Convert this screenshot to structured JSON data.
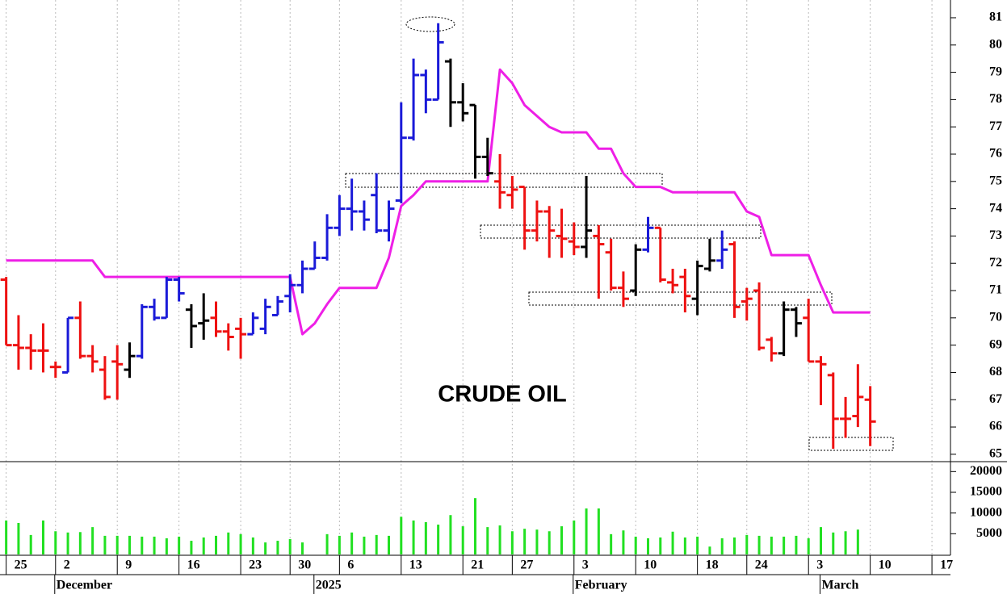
{
  "chart_data": {
    "type": "ohlc",
    "title": "CRUDE OIL",
    "categories": [
      "25",
      null,
      null,
      null,
      "2",
      null,
      null,
      null,
      null,
      "9",
      null,
      null,
      null,
      null,
      "16",
      null,
      null,
      null,
      null,
      "23",
      null,
      null,
      null,
      "30",
      null,
      null,
      null,
      "6",
      null,
      null,
      null,
      null,
      "13",
      null,
      null,
      null,
      null,
      "21",
      null,
      null,
      null,
      "27",
      null,
      null,
      null,
      null,
      "3",
      null,
      null,
      null,
      null,
      "10",
      null,
      null,
      null,
      null,
      "18",
      null,
      null,
      null,
      "24",
      null,
      null,
      null,
      null,
      "3",
      null,
      null,
      null,
      null,
      "10",
      null,
      null,
      null,
      null,
      "17",
      null
    ],
    "months": [
      null,
      null,
      null,
      null,
      "December",
      null,
      null,
      null,
      null,
      null,
      null,
      null,
      null,
      null,
      null,
      null,
      null,
      null,
      null,
      null,
      null,
      null,
      null,
      null,
      null,
      "2025",
      null,
      null,
      null,
      null,
      null,
      null,
      null,
      null,
      null,
      null,
      null,
      null,
      null,
      null,
      null,
      null,
      null,
      null,
      null,
      null,
      "February",
      null,
      null,
      null,
      null,
      null,
      null,
      null,
      null,
      null,
      null,
      null,
      null,
      null,
      null,
      null,
      null,
      null,
      null,
      null,
      "March",
      null,
      null,
      null,
      null,
      null,
      null,
      null,
      null,
      null,
      null,
      null
    ],
    "open": [
      71.4,
      69.0,
      68.9,
      68.8,
      68.2,
      68.0,
      70.0,
      68.6,
      68.1,
      68.4,
      68.1,
      68.6,
      70.4,
      70.0,
      71.4,
      70.3,
      69.8,
      70.0,
      69.5,
      69.6,
      69.4,
      69.6,
      70.1,
      70.8,
      71.2,
      71.8,
      72.2,
      73.3,
      74.0,
      73.9,
      74.5,
      73.2,
      74.3,
      76.6,
      78.9,
      78.0,
      79.4,
      77.9,
      77.8,
      75.9,
      75.0,
      74.5,
      74.8,
      73.2,
      73.9,
      73.0,
      72.8,
      72.6,
      73.0,
      72.4,
      71.1,
      71.0,
      72.5,
      73.3,
      71.3,
      71.5,
      70.7,
      71.8,
      72.1,
      72.7,
      70.6,
      71.0,
      69.2,
      68.7,
      70.3,
      70.0,
      68.4,
      67.9,
      66.3,
      66.4,
      67.0,
      null,
      null,
      null,
      null,
      null,
      null
    ],
    "high": [
      71.5,
      70.1,
      69.4,
      69.8,
      68.4,
      70.0,
      70.6,
      69.0,
      68.6,
      69.0,
      69.1,
      70.5,
      70.7,
      71.5,
      71.5,
      70.5,
      70.9,
      70.6,
      69.8,
      70.0,
      70.2,
      70.7,
      70.8,
      71.6,
      72.1,
      72.8,
      73.8,
      74.5,
      75.1,
      74.3,
      75.3,
      74.3,
      77.9,
      79.5,
      79.1,
      80.8,
      79.5,
      78.6,
      77.8,
      76.6,
      76.0,
      75.2,
      74.8,
      74.3,
      74.1,
      74.0,
      73.5,
      75.2,
      73.4,
      72.9,
      71.7,
      72.7,
      73.7,
      73.3,
      71.8,
      71.8,
      72.1,
      72.9,
      73.2,
      72.8,
      71.1,
      71.3,
      69.3,
      70.6,
      70.4,
      70.7,
      68.6,
      68.0,
      67.1,
      68.3,
      67.5,
      null,
      null,
      null,
      null,
      null,
      null
    ],
    "low": [
      69.0,
      68.1,
      68.1,
      68.0,
      67.8,
      68.0,
      68.5,
      68.0,
      67.0,
      67.0,
      67.8,
      68.5,
      69.9,
      70.0,
      70.6,
      68.9,
      69.2,
      69.3,
      68.8,
      68.5,
      69.4,
      69.4,
      70.1,
      70.2,
      70.9,
      71.8,
      72.1,
      73.0,
      73.2,
      73.2,
      73.1,
      72.8,
      74.2,
      76.5,
      77.5,
      78.0,
      77.0,
      77.2,
      75.1,
      75.2,
      74.0,
      74.0,
      72.5,
      72.8,
      72.2,
      72.2,
      72.3,
      72.2,
      70.7,
      71.0,
      70.4,
      70.8,
      72.4,
      71.3,
      70.9,
      70.2,
      70.1,
      71.7,
      71.8,
      70.0,
      69.9,
      68.8,
      68.4,
      68.6,
      69.3,
      68.4,
      66.8,
      65.2,
      65.6,
      66.0,
      65.3,
      null,
      null,
      null,
      null,
      null,
      null
    ],
    "close": [
      69.0,
      68.9,
      68.8,
      68.8,
      68.2,
      70.0,
      68.6,
      68.4,
      67.1,
      68.3,
      68.6,
      70.4,
      70.0,
      71.4,
      70.9,
      69.7,
      69.9,
      69.5,
      69.3,
      69.4,
      70.0,
      70.4,
      70.6,
      71.2,
      71.8,
      72.2,
      73.3,
      74.0,
      73.9,
      73.6,
      73.2,
      74.0,
      76.6,
      78.9,
      78.0,
      80.1,
      77.9,
      77.5,
      75.9,
      75.3,
      74.6,
      74.7,
      73.2,
      73.9,
      73.2,
      72.9,
      72.6,
      73.2,
      72.7,
      71.1,
      70.7,
      72.5,
      73.3,
      71.4,
      71.2,
      70.8,
      71.9,
      72.1,
      72.5,
      70.4,
      70.7,
      68.9,
      68.7,
      70.3,
      69.8,
      68.4,
      68.3,
      66.3,
      66.3,
      67.1,
      66.2,
      null,
      null,
      null,
      null,
      null,
      null
    ],
    "bar_colors": [
      "#ee1111",
      "#ee1111",
      "#ee1111",
      "#ee1111",
      "#ee1111",
      "#1a1ad8",
      "#ee1111",
      "#ee1111",
      "#ee1111",
      "#ee1111",
      "#000000",
      "#1a1ad8",
      "#1a1ad8",
      "#1a1ad8",
      "#1a1ad8",
      "#000000",
      "#000000",
      "#ee1111",
      "#ee1111",
      "#ee1111",
      "#1a1ad8",
      "#1a1ad8",
      "#1a1ad8",
      "#1a1ad8",
      "#1a1ad8",
      "#1a1ad8",
      "#1a1ad8",
      "#1a1ad8",
      "#1a1ad8",
      "#1a1ad8",
      "#1a1ad8",
      "#1a1ad8",
      "#1a1ad8",
      "#1a1ad8",
      "#1a1ad8",
      "#1a1ad8",
      "#000000",
      "#000000",
      "#000000",
      "#000000",
      "#ee1111",
      "#ee1111",
      "#ee1111",
      "#ee1111",
      "#ee1111",
      "#ee1111",
      "#ee1111",
      "#000000",
      "#ee1111",
      "#ee1111",
      "#ee1111",
      "#000000",
      "#1a1ad8",
      "#ee1111",
      "#ee1111",
      "#ee1111",
      "#000000",
      "#000000",
      "#1a1ad8",
      "#ee1111",
      "#ee1111",
      "#ee1111",
      "#ee1111",
      "#000000",
      "#000000",
      "#ee1111",
      "#ee1111",
      "#ee1111",
      "#ee1111",
      "#ee1111",
      "#ee1111",
      null,
      null,
      null,
      null,
      null,
      null
    ],
    "stop_line": {
      "color": "#ee1fe6",
      "values": [
        72.1,
        72.1,
        72.1,
        72.1,
        72.1,
        72.1,
        72.1,
        72.1,
        71.5,
        71.5,
        71.5,
        71.5,
        71.5,
        71.5,
        71.5,
        71.5,
        71.5,
        71.5,
        71.5,
        71.5,
        71.5,
        71.5,
        71.5,
        71.5,
        69.4,
        69.8,
        70.5,
        71.1,
        71.1,
        71.1,
        71.1,
        72.2,
        74.1,
        74.5,
        75.0,
        75.0,
        75.0,
        75.0,
        75.0,
        75.0,
        79.1,
        78.6,
        77.8,
        77.4,
        77.0,
        76.8,
        76.8,
        76.8,
        76.2,
        76.2,
        75.3,
        74.8,
        74.8,
        74.8,
        74.6,
        74.6,
        74.6,
        74.6,
        74.6,
        74.6,
        73.9,
        73.7,
        72.3,
        72.3,
        72.3,
        72.3,
        71.2,
        70.2,
        70.2,
        70.2,
        70.2,
        null,
        null,
        null,
        null,
        null,
        null
      ]
    },
    "volume": {
      "color": "#22e022",
      "values": [
        8200,
        7600,
        4700,
        8200,
        5600,
        5300,
        5400,
        6600,
        4500,
        4500,
        4500,
        4300,
        4300,
        3900,
        4300,
        3300,
        4100,
        4500,
        5300,
        4900,
        4100,
        2900,
        3300,
        3700,
        2900,
        null,
        4900,
        4500,
        5300,
        4300,
        4700,
        4500,
        9100,
        8200,
        7800,
        7200,
        9500,
        6800,
        13600,
        6600,
        7000,
        5600,
        6200,
        6000,
        5600,
        6800,
        8200,
        11100,
        11100,
        4900,
        5800,
        4300,
        3900,
        4100,
        5500,
        4100,
        4300,
        1900,
        3900,
        4100,
        4700,
        4500,
        4300,
        4300,
        4500,
        3900,
        6600,
        5300,
        5600,
        6000,
        null,
        null,
        null,
        null,
        null,
        null,
        null
      ],
      "ylim": [
        0,
        22400
      ],
      "yticks": [
        5000,
        10000,
        15000,
        20000
      ]
    },
    "ylim": [
      64.73,
      81.65
    ],
    "yticks": [
      65,
      66,
      67,
      68,
      69,
      70,
      71,
      72,
      73,
      74,
      75,
      76,
      77,
      78,
      79,
      80,
      81
    ],
    "grid": true
  }
}
